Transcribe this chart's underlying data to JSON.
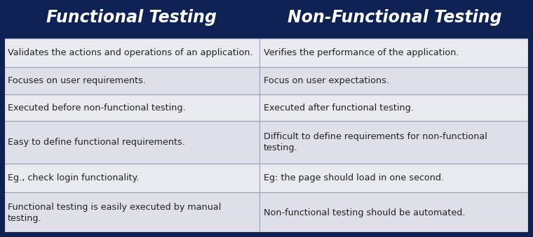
{
  "header_bg": "#0d2152",
  "header_text_color": "#ffffff",
  "row_bg_light": "#e8eaf0",
  "row_bg_dark": "#dde0e8",
  "cell_text_color": "#222222",
  "border_color": "#9aa0b4",
  "outer_border_color": "#0d2152",
  "col1_header": "Functional Testing",
  "col2_header": "Non-Functional Testing",
  "rows": [
    [
      "Validates the actions and operations of an application.",
      "Verifies the performance of the application."
    ],
    [
      "Focuses on user requirements.",
      "Focus on user expectations."
    ],
    [
      "Executed before non-functional testing.",
      "Executed after functional testing."
    ],
    [
      "Easy to define functional requirements.",
      "Difficult to define requirements for non-functional\ntesting."
    ],
    [
      "Eg., check login functionality.",
      "Eg: the page should load in one second."
    ],
    [
      "Functional testing is easily executed by manual\ntesting.",
      "Non-functional testing should be automated."
    ]
  ],
  "header_fontsize": 17,
  "cell_fontsize": 9.2,
  "fig_width": 7.6,
  "fig_height": 3.39,
  "dpi": 100
}
